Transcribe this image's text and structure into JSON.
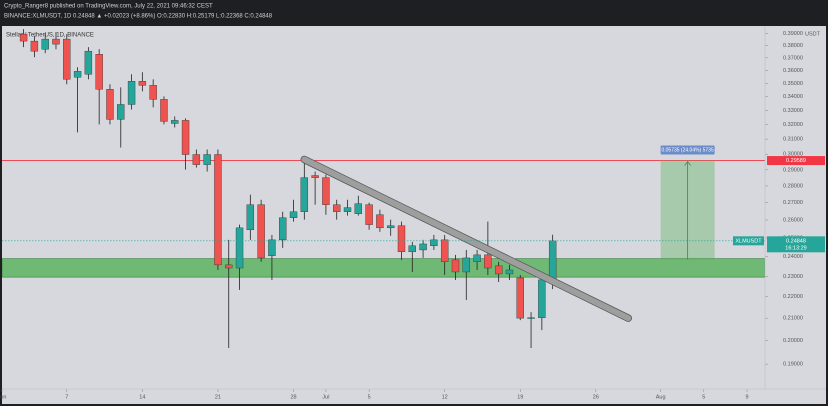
{
  "header": {
    "line1": "Crypto_Ranger8 published on TradingView.com, July 22, 2021 09:46:32 CEST",
    "line2": "BINANCE:XLMUSDT, 1D 0.24848 ▲ +0.02023 (+8.86%) O:0.22830 H:0.25179 L:0.22368 C:0.24848"
  },
  "chart_data": {
    "type": "candlestick",
    "title": "Stellar / TetherUS, 1D, BINANCE",
    "currency": "USDT",
    "x": [
      "2021-06-03",
      "2021-06-04",
      "2021-06-05",
      "2021-06-06",
      "2021-06-07",
      "2021-06-08",
      "2021-06-09",
      "2021-06-10",
      "2021-06-11",
      "2021-06-12",
      "2021-06-13",
      "2021-06-14",
      "2021-06-15",
      "2021-06-16",
      "2021-06-17",
      "2021-06-18",
      "2021-06-19",
      "2021-06-20",
      "2021-06-21",
      "2021-06-22",
      "2021-06-23",
      "2021-06-24",
      "2021-06-25",
      "2021-06-26",
      "2021-06-27",
      "2021-06-28",
      "2021-06-29",
      "2021-06-30",
      "2021-07-01",
      "2021-07-02",
      "2021-07-03",
      "2021-07-04",
      "2021-07-05",
      "2021-07-06",
      "2021-07-07",
      "2021-07-08",
      "2021-07-09",
      "2021-07-10",
      "2021-07-11",
      "2021-07-12",
      "2021-07-13",
      "2021-07-14",
      "2021-07-15",
      "2021-07-16",
      "2021-07-17",
      "2021-07-18",
      "2021-07-19",
      "2021-07-20",
      "2021-07-21",
      "2021-07-22"
    ],
    "open": [
      0.3896,
      0.3837,
      0.377,
      0.3854,
      0.3854,
      0.3547,
      0.357,
      0.3729,
      0.3455,
      0.3236,
      0.3343,
      0.3516,
      0.3485,
      0.338,
      0.3208,
      0.3229,
      0.2998,
      0.2933,
      0.2998,
      0.2358,
      0.2342,
      0.2545,
      0.2688,
      0.2405,
      0.249,
      0.2613,
      0.2647,
      0.2864,
      0.2851,
      0.2688,
      0.2647,
      0.2636,
      0.2688,
      0.263,
      0.2556,
      0.2568,
      0.2426,
      0.2436,
      0.2458,
      0.249,
      0.2384,
      0.2322,
      0.2374,
      0.241,
      0.2353,
      0.2312,
      0.2292,
      0.21,
      0.2102,
      0.2283
    ],
    "high": [
      0.3939,
      0.3879,
      0.3905,
      0.3913,
      0.3896,
      0.3625,
      0.3787,
      0.377,
      0.3493,
      0.347,
      0.357,
      0.3586,
      0.3531,
      0.3402,
      0.3257,
      0.3243,
      0.3031,
      0.3031,
      0.3031,
      0.249,
      0.2574,
      0.2747,
      0.2717,
      0.2517,
      0.2647,
      0.2717,
      0.2953,
      0.2889,
      0.287,
      0.2717,
      0.2717,
      0.2741,
      0.27,
      0.2659,
      0.2602,
      0.2591,
      0.2479,
      0.249,
      0.2517,
      0.2517,
      0.241,
      0.2436,
      0.2436,
      0.2591,
      0.2374,
      0.2358,
      0.2307,
      0.2128,
      0.23,
      0.25179
    ],
    "low": [
      0.3787,
      0.3705,
      0.3738,
      0.377,
      0.3493,
      0.3146,
      0.3531,
      0.3201,
      0.3201,
      0.3044,
      0.3307,
      0.344,
      0.3322,
      0.3201,
      0.318,
      0.2901,
      0.2914,
      0.2889,
      0.2332,
      0.1968,
      0.2233,
      0.249,
      0.2374,
      0.2282,
      0.2447,
      0.2591,
      0.2602,
      0.2688,
      0.263,
      0.2602,
      0.2625,
      0.2625,
      0.2545,
      0.2534,
      0.2512,
      0.2384,
      0.2322,
      0.2394,
      0.2436,
      0.2307,
      0.2282,
      0.2185,
      0.2332,
      0.2307,
      0.2272,
      0.2282,
      0.2091,
      0.1968,
      0.2046,
      0.22368
    ],
    "close": [
      0.3837,
      0.3754,
      0.3854,
      0.3812,
      0.3531,
      0.3593,
      0.3754,
      0.3455,
      0.3236,
      0.3343,
      0.3516,
      0.3485,
      0.338,
      0.3222,
      0.3229,
      0.2998,
      0.2933,
      0.2998,
      0.2358,
      0.2342,
      0.2556,
      0.2688,
      0.2394,
      0.249,
      0.2613,
      0.2647,
      0.2851,
      0.2851,
      0.2688,
      0.2647,
      0.2671,
      0.2694,
      0.2574,
      0.2556,
      0.2568,
      0.2426,
      0.2458,
      0.2468,
      0.249,
      0.2374,
      0.2322,
      0.2394,
      0.241,
      0.2342,
      0.2312,
      0.2332,
      0.21,
      0.2102,
      0.22825,
      0.24848
    ],
    "up_color": "#26a69a",
    "down_color": "#ef5350",
    "xlim": [
      "2021-06-01",
      "2021-08-09"
    ],
    "xticks": [
      {
        "value": "2021-06-01",
        "label": "Jun"
      },
      {
        "value": "2021-06-07",
        "label": "7"
      },
      {
        "value": "2021-06-14",
        "label": "14"
      },
      {
        "value": "2021-06-21",
        "label": "21"
      },
      {
        "value": "2021-06-28",
        "label": "28"
      },
      {
        "value": "2021-07-01",
        "label": "Jul"
      },
      {
        "value": "2021-07-05",
        "label": "5"
      },
      {
        "value": "2021-07-12",
        "label": "12"
      },
      {
        "value": "2021-07-19",
        "label": "19"
      },
      {
        "value": "2021-07-26",
        "label": "26"
      },
      {
        "value": "2021-08-01",
        "label": "Aug"
      },
      {
        "value": "2021-08-05",
        "label": "5"
      },
      {
        "value": "2021-08-09",
        "label": "9"
      }
    ],
    "ylim": [
      0.18,
      0.4
    ],
    "log_scale": true,
    "grid": false,
    "yticks": [
      {
        "value": 0.19,
        "label": "0.19000"
      },
      {
        "value": 0.2,
        "label": "0.20000"
      },
      {
        "value": 0.21,
        "label": "0.21000"
      },
      {
        "value": 0.22,
        "label": "0.22000"
      },
      {
        "value": 0.23,
        "label": "0.23000"
      },
      {
        "value": 0.24,
        "label": "0.24000"
      },
      {
        "value": 0.25,
        "label": "0.25000"
      },
      {
        "value": 0.26,
        "label": "0.26000"
      },
      {
        "value": 0.27,
        "label": "0.27000"
      },
      {
        "value": 0.28,
        "label": "0.28000"
      },
      {
        "value": 0.29,
        "label": "0.29000"
      },
      {
        "value": 0.3,
        "label": "0.30000"
      },
      {
        "value": 0.31,
        "label": "0.31000"
      },
      {
        "value": 0.32,
        "label": "0.32000"
      },
      {
        "value": 0.33,
        "label": "0.33000"
      },
      {
        "value": 0.34,
        "label": "0.34000"
      },
      {
        "value": 0.35,
        "label": "0.35000"
      },
      {
        "value": 0.36,
        "label": "0.36000"
      },
      {
        "value": 0.37,
        "label": "0.37000"
      },
      {
        "value": 0.38,
        "label": "0.38000"
      },
      {
        "value": 0.39,
        "label": "0.39000"
      }
    ],
    "hline": {
      "value": 0.29589,
      "color": "#f23645"
    },
    "zone": {
      "values": [
        0.2296,
        0.239
      ],
      "color": "#4caf50"
    },
    "trendline": {
      "x": [
        "2021-06-29",
        "2021-07-29"
      ],
      "values": [
        0.2966,
        0.21
      ],
      "color": "#9e9e9e"
    },
    "measure": {
      "x": [
        "2021-08-01",
        "2021-08-06"
      ],
      "values": [
        0.23854,
        0.29589
      ],
      "label": "0.05735 (24.04%) 5735",
      "color": "#4caf50"
    },
    "last_price": {
      "symbol": "XLMUSDT",
      "value": 0.24848,
      "countdown": "16:13:29",
      "color": "#26a69a"
    }
  }
}
